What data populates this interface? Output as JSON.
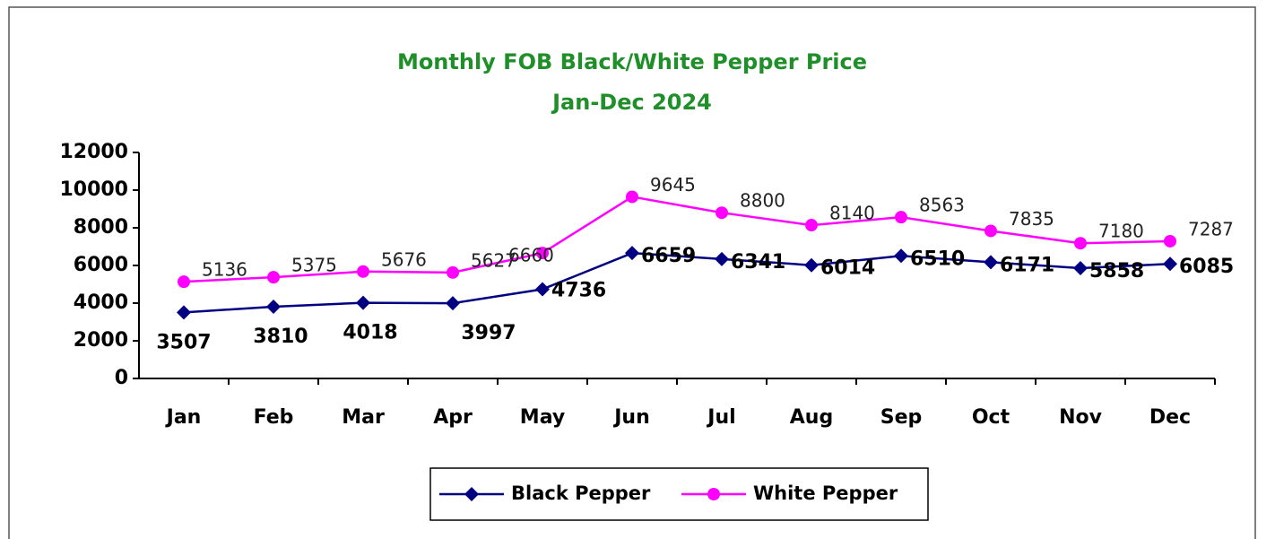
{
  "chart_data": {
    "type": "line",
    "title": "Monthly FOB Black/White Pepper Price",
    "subtitle": "Jan-Dec 2024",
    "categories": [
      "Jan",
      "Feb",
      "Mar",
      "Apr",
      "May",
      "Jun",
      "Jul",
      "Aug",
      "Sep",
      "Oct",
      "Nov",
      "Dec"
    ],
    "series": [
      {
        "name": "Black Pepper",
        "color": "#000080",
        "values": [
          3507,
          3810,
          4018,
          3997,
          4736,
          6659,
          6341,
          6014,
          6510,
          6171,
          5858,
          6085
        ]
      },
      {
        "name": "White Pepper",
        "color": "#ff00ff",
        "values": [
          5136,
          5375,
          5676,
          5627,
          6660,
          9645,
          8800,
          8140,
          8563,
          7835,
          7180,
          7287
        ]
      }
    ],
    "ylim": [
      0,
      12000
    ],
    "yticks": [
      0,
      2000,
      4000,
      6000,
      8000,
      10000,
      12000
    ],
    "legend": "bottom"
  }
}
